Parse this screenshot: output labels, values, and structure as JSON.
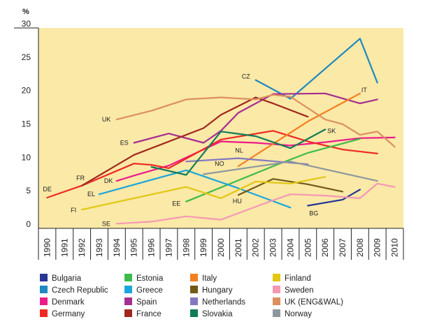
{
  "chart_data": {
    "type": "line",
    "title": "",
    "xlabel": "",
    "ylabel": "%",
    "ylim": [
      0,
      30
    ],
    "y_ticks": [
      "0",
      "5",
      "10",
      "15",
      "20",
      "25",
      "30"
    ],
    "x": [
      "1990",
      "1991",
      "1992",
      "1993",
      "1994",
      "1995",
      "1996",
      "1997",
      "1998",
      "1999",
      "2000",
      "2001",
      "2002",
      "2003",
      "2004",
      "2005",
      "2006",
      "2007",
      "2008",
      "2009",
      "2010"
    ],
    "background_color": "#fae9a7",
    "grid": false,
    "legend_position": "bottom",
    "series": [
      {
        "name": "Bulgaria",
        "code": "BG",
        "color": "#283593",
        "points": [
          [
            2005,
            3.4
          ],
          [
            2007,
            4.3
          ],
          [
            2008,
            5.8
          ]
        ]
      },
      {
        "name": "Czech Republic",
        "code": "CZ",
        "color": "#1e88c0",
        "points": [
          [
            2002,
            22.2
          ],
          [
            2004,
            19.4
          ],
          [
            2008,
            28.4
          ],
          [
            2009,
            21.8
          ]
        ]
      },
      {
        "name": "Denmark",
        "code": "DK",
        "color": "#ec1b8a",
        "points": [
          [
            1994,
            7.1
          ],
          [
            1995,
            7.9
          ],
          [
            1997,
            9.4
          ],
          [
            1999,
            11.8
          ],
          [
            2000,
            13.0
          ],
          [
            2002,
            12.8
          ],
          [
            2004,
            12.4
          ],
          [
            2006,
            12.9
          ],
          [
            2008,
            13.5
          ],
          [
            2010,
            13.6
          ]
        ]
      },
      {
        "name": "Germany",
        "code": "DE",
        "color": "#ee2a24",
        "points": [
          [
            1990,
            4.6
          ],
          [
            1992,
            6.4
          ],
          [
            1995,
            9.7
          ],
          [
            1996,
            9.5
          ],
          [
            1997,
            9.0
          ],
          [
            2000,
            13.3
          ],
          [
            2003,
            14.6
          ],
          [
            2005,
            13.0
          ],
          [
            2007,
            11.8
          ],
          [
            2009,
            11.2
          ]
        ]
      },
      {
        "name": "Estonia",
        "code": "EE",
        "color": "#3dbb49",
        "points": [
          [
            1998,
            4.0
          ],
          [
            2003,
            9.3
          ],
          [
            2005,
            11.3
          ],
          [
            2008,
            13.4
          ]
        ]
      },
      {
        "name": "Greece",
        "code": "EL",
        "color": "#1ba5dd",
        "points": [
          [
            1993,
            5.1
          ],
          [
            1998,
            8.7
          ],
          [
            2001,
            6.0
          ],
          [
            2004,
            3.1
          ]
        ]
      },
      {
        "name": "Spain",
        "code": "ES",
        "color": "#a62d92",
        "points": [
          [
            1995,
            12.8
          ],
          [
            1997,
            14.2
          ],
          [
            1999,
            12.8
          ],
          [
            2000,
            14.6
          ],
          [
            2001,
            17.3
          ],
          [
            2003,
            20.1
          ],
          [
            2006,
            20.2
          ],
          [
            2008,
            18.7
          ],
          [
            2009,
            19.3
          ]
        ]
      },
      {
        "name": "France",
        "code": "FR",
        "color": "#a0281d",
        "points": [
          [
            1992,
            6.4
          ],
          [
            1995,
            11.0
          ],
          [
            1999,
            15.0
          ],
          [
            2000,
            17.0
          ],
          [
            2002,
            19.6
          ],
          [
            2003,
            18.7
          ],
          [
            2005,
            16.7
          ]
        ]
      },
      {
        "name": "Italy",
        "code": "IT",
        "color": "#f37f20",
        "points": [
          [
            2001,
            9.3
          ],
          [
            2005,
            16.0
          ],
          [
            2008,
            20.2
          ]
        ]
      },
      {
        "name": "Hungary",
        "code": "HU",
        "color": "#735915",
        "points": [
          [
            2001,
            5.0
          ],
          [
            2003,
            7.4
          ],
          [
            2005,
            6.6
          ],
          [
            2007,
            5.5
          ]
        ]
      },
      {
        "name": "Netherlands",
        "code": "NL",
        "color": "#8378c0",
        "points": [
          [
            1998,
            10.0
          ],
          [
            2001,
            10.5
          ],
          [
            2005,
            9.6
          ]
        ]
      },
      {
        "name": "Slovakia",
        "code": "SK",
        "color": "#117b59",
        "points": [
          [
            1996,
            9.2
          ],
          [
            1998,
            8.0
          ],
          [
            2000,
            14.5
          ],
          [
            2002,
            13.8
          ],
          [
            2004,
            12.0
          ],
          [
            2006,
            14.8
          ]
        ]
      },
      {
        "name": "Finland",
        "code": "FI",
        "color": "#e2c713",
        "points": [
          [
            1992,
            2.8
          ],
          [
            1998,
            6.2
          ],
          [
            2000,
            4.5
          ],
          [
            2002,
            7.0
          ],
          [
            2004,
            6.7
          ],
          [
            2006,
            7.7
          ]
        ]
      },
      {
        "name": "Sweden",
        "code": "SE",
        "color": "#f598b3",
        "points": [
          [
            1994,
            0.7
          ],
          [
            1996,
            1.0
          ],
          [
            1998,
            1.8
          ],
          [
            2000,
            1.3
          ],
          [
            2003,
            4.2
          ],
          [
            2004,
            5.1
          ],
          [
            2006,
            4.9
          ],
          [
            2008,
            4.5
          ],
          [
            2009,
            6.7
          ],
          [
            2010,
            6.2
          ]
        ]
      },
      {
        "name": "UK (ENG&WAL)",
        "code": "UK",
        "color": "#dd8f60",
        "points": [
          [
            1994,
            16.3
          ],
          [
            1996,
            17.6
          ],
          [
            1998,
            19.3
          ],
          [
            2000,
            19.6
          ],
          [
            2002,
            19.3
          ],
          [
            2003,
            20.0
          ],
          [
            2004,
            19.7
          ],
          [
            2006,
            16.3
          ],
          [
            2007,
            15.6
          ],
          [
            2008,
            14.0
          ],
          [
            2009,
            14.5
          ],
          [
            2010,
            12.2
          ]
        ]
      },
      {
        "name": "Norway",
        "code": "NO",
        "color": "#8d979e",
        "points": [
          [
            1999,
            8.1
          ],
          [
            2004,
            10.0
          ],
          [
            2009,
            7.1
          ]
        ]
      }
    ]
  }
}
